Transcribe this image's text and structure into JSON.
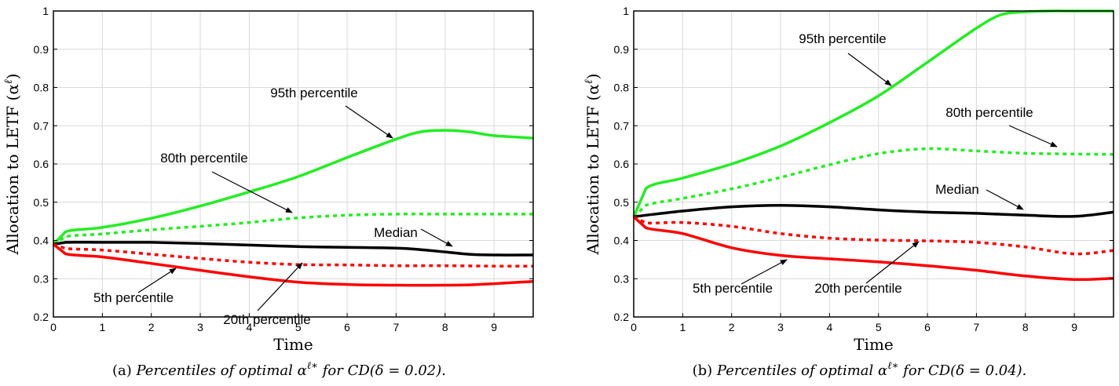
{
  "chart_data": [
    {
      "type": "line",
      "title": "",
      "xlabel": "Time",
      "ylabel": "Allocation to LETF (α^ℓ)",
      "ylabel_main": "Allocation to LETF (α",
      "ylabel_sup": "ℓ",
      "ylabel_close": ")",
      "xlim": [
        0,
        9.8
      ],
      "ylim": [
        0.2,
        1
      ],
      "x_ticks": [
        "0",
        "1",
        "2",
        "3",
        "4",
        "5",
        "6",
        "7",
        "8",
        "9"
      ],
      "y_ticks": [
        "0.2",
        "0.3",
        "0.4",
        "0.5",
        "0.6",
        "0.7",
        "0.8",
        "0.9",
        "1"
      ],
      "grid": true,
      "caption": {
        "label": "(a)",
        "text": "Percentiles of optimal α",
        "sup": "ℓ∗",
        "suffix": "for CD(δ = 0.02)."
      },
      "series": [
        {
          "name": "95th percentile",
          "color": "#22ee22",
          "dashed": false,
          "x": [
            0,
            0.25,
            1,
            2,
            3,
            4,
            5,
            6,
            7,
            7.5,
            8,
            8.5,
            9,
            9.8
          ],
          "values": [
            0.39,
            0.423,
            0.434,
            0.458,
            0.49,
            0.527,
            0.567,
            0.617,
            0.665,
            0.684,
            0.688,
            0.684,
            0.674,
            0.668
          ]
        },
        {
          "name": "80th percentile",
          "color": "#ff0000",
          "dashed": true,
          "color_hint": "green",
          "x": [
            0,
            0.25,
            1,
            2,
            3,
            4,
            5,
            6,
            7,
            8,
            9,
            9.8
          ],
          "values": [
            0.39,
            0.41,
            0.417,
            0.428,
            0.437,
            0.447,
            0.459,
            0.466,
            0.469,
            0.469,
            0.469,
            0.469
          ]
        },
        {
          "name": "Median",
          "color": "#000000",
          "dashed": false,
          "x": [
            0,
            0.25,
            1,
            2,
            3,
            4,
            5,
            6,
            7,
            7.5,
            8,
            8.5,
            9,
            9.8
          ],
          "values": [
            0.39,
            0.395,
            0.395,
            0.395,
            0.392,
            0.388,
            0.384,
            0.382,
            0.38,
            0.376,
            0.37,
            0.364,
            0.362,
            0.362
          ]
        },
        {
          "name": "20th percentile",
          "color": "#ff0000",
          "dashed": true,
          "x": [
            0,
            0.25,
            1,
            2,
            3,
            4,
            5,
            6,
            7,
            8,
            9,
            9.8
          ],
          "values": [
            0.39,
            0.379,
            0.375,
            0.364,
            0.353,
            0.343,
            0.337,
            0.336,
            0.334,
            0.334,
            0.333,
            0.333
          ]
        },
        {
          "name": "5th percentile",
          "color": "#ff0000",
          "dashed": false,
          "x": [
            0,
            0.25,
            1,
            2,
            3,
            4,
            5,
            6,
            7,
            8,
            8.5,
            9,
            9.8
          ],
          "values": [
            0.39,
            0.365,
            0.357,
            0.34,
            0.322,
            0.305,
            0.291,
            0.285,
            0.283,
            0.283,
            0.284,
            0.287,
            0.293
          ]
        }
      ]
    },
    {
      "type": "line",
      "title": "",
      "xlabel": "Time",
      "ylabel": "Allocation to LETF (α^ℓ)",
      "ylabel_main": "Allocation to LETF (α",
      "ylabel_sup": "ℓ",
      "ylabel_close": ")",
      "xlim": [
        0,
        9.8
      ],
      "ylim": [
        0.2,
        1
      ],
      "x_ticks": [
        "0",
        "1",
        "2",
        "3",
        "4",
        "5",
        "6",
        "7",
        "8",
        "9"
      ],
      "y_ticks": [
        "0.2",
        "0.3",
        "0.4",
        "0.5",
        "0.6",
        "0.7",
        "0.8",
        "0.9",
        "1"
      ],
      "grid": true,
      "caption": {
        "label": "(b)",
        "text": "Percentiles of optimal α",
        "sup": "ℓ∗",
        "suffix": "for CD(δ = 0.04)."
      },
      "series": [
        {
          "name": "95th percentile",
          "color": "#22ee22",
          "dashed": false,
          "x": [
            0,
            0.25,
            1,
            2,
            3,
            4,
            5,
            6,
            7,
            7.5,
            8,
            8.5,
            9,
            9.8
          ],
          "values": [
            0.462,
            0.536,
            0.563,
            0.6,
            0.647,
            0.708,
            0.778,
            0.866,
            0.955,
            0.99,
            0.998,
            1.0,
            1.0,
            1.0
          ]
        },
        {
          "name": "80th percentile",
          "color": "#22ee22",
          "dashed": true,
          "x": [
            0,
            0.25,
            1,
            2,
            3,
            4,
            5,
            6,
            7,
            8,
            9,
            9.8
          ],
          "values": [
            0.462,
            0.492,
            0.51,
            0.535,
            0.565,
            0.598,
            0.627,
            0.64,
            0.634,
            0.628,
            0.626,
            0.625
          ]
        },
        {
          "name": "Median",
          "color": "#000000",
          "dashed": false,
          "x": [
            0,
            0.25,
            1,
            2,
            3,
            4,
            5,
            6,
            7,
            8,
            9,
            9.8
          ],
          "values": [
            0.462,
            0.466,
            0.477,
            0.488,
            0.492,
            0.488,
            0.48,
            0.474,
            0.471,
            0.466,
            0.463,
            0.474
          ]
        },
        {
          "name": "20th percentile",
          "color": "#ff0000",
          "dashed": true,
          "x": [
            0,
            0.25,
            1,
            2,
            3,
            4,
            5,
            6,
            7,
            8,
            9,
            9.8
          ],
          "values": [
            0.462,
            0.446,
            0.447,
            0.437,
            0.418,
            0.406,
            0.401,
            0.399,
            0.395,
            0.383,
            0.365,
            0.374
          ]
        },
        {
          "name": "5th percentile",
          "color": "#ff0000",
          "dashed": false,
          "x": [
            0,
            0.25,
            1,
            2,
            3,
            4,
            5,
            6,
            7,
            8,
            9,
            9.8
          ],
          "values": [
            0.462,
            0.433,
            0.418,
            0.381,
            0.361,
            0.352,
            0.344,
            0.334,
            0.322,
            0.307,
            0.298,
            0.301
          ]
        }
      ]
    }
  ]
}
